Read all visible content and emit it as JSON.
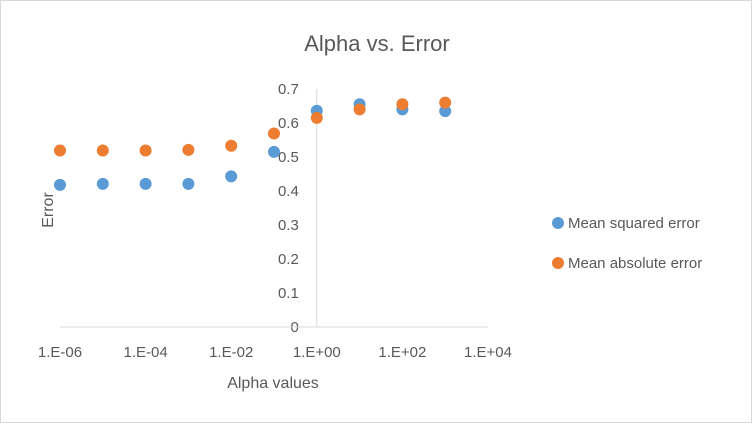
{
  "chart_data": {
    "type": "scatter",
    "title": "Alpha vs. Error",
    "xlabel": "Alpha values",
    "ylabel": "Error",
    "x_scale": "log",
    "xlim": [
      "1.E-06",
      "1.E+04"
    ],
    "ylim": [
      0,
      0.7
    ],
    "x_ticks": [
      "1.E-06",
      "1.E-04",
      "1.E-02",
      "1.E+00",
      "1.E+02",
      "1.E+04"
    ],
    "y_ticks": [
      "0",
      "0.1",
      "0.2",
      "0.3",
      "0.4",
      "0.5",
      "0.6",
      "0.7"
    ],
    "grid": false,
    "legend_position": "right",
    "series": [
      {
        "name": "Mean squared error",
        "color": "#5b9bd5",
        "x": [
          1e-06,
          1e-05,
          0.0001,
          0.001,
          0.01,
          0.1,
          1,
          10,
          100,
          1000
        ],
        "y": [
          0.418,
          0.421,
          0.421,
          0.421,
          0.443,
          0.515,
          0.636,
          0.655,
          0.64,
          0.635
        ]
      },
      {
        "name": "Mean absolute error",
        "color": "#ed7d31",
        "x": [
          1e-06,
          1e-05,
          0.0001,
          0.001,
          0.01,
          0.1,
          1,
          10,
          100,
          1000
        ],
        "y": [
          0.519,
          0.519,
          0.519,
          0.521,
          0.533,
          0.569,
          0.615,
          0.64,
          0.655,
          0.66
        ]
      }
    ]
  }
}
